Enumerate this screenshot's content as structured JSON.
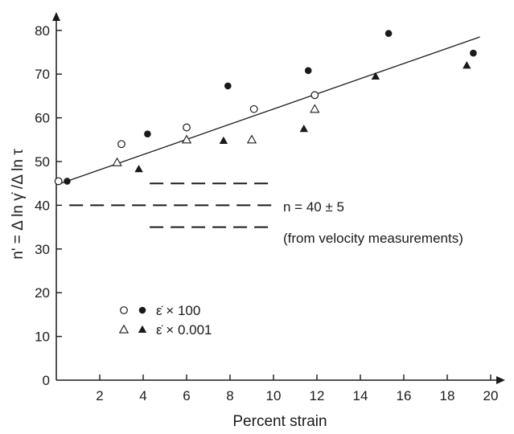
{
  "chart_data": {
    "type": "scatter",
    "title": "",
    "xlabel": "Percent strain",
    "ylabel": "n' = Δ ln γ̇ /Δ ln τ",
    "xlim": [
      0,
      20
    ],
    "ylim": [
      0,
      85
    ],
    "x_ticks": [
      2,
      4,
      6,
      8,
      10,
      12,
      14,
      16,
      18,
      20
    ],
    "y_ticks": [
      0,
      10,
      20,
      30,
      40,
      50,
      60,
      70,
      80
    ],
    "grid": false,
    "series": [
      {
        "marker": "open-circle",
        "points": [
          [
            0.1,
            45.5
          ],
          [
            3.0,
            54.0
          ],
          [
            6.0,
            57.8
          ],
          [
            9.1,
            62.0
          ],
          [
            11.9,
            65.2
          ]
        ]
      },
      {
        "marker": "filled-circle",
        "points": [
          [
            0.5,
            45.5
          ],
          [
            4.2,
            56.3
          ],
          [
            7.9,
            67.3
          ],
          [
            11.6,
            70.8
          ],
          [
            15.3,
            79.3
          ],
          [
            19.2,
            74.8
          ]
        ]
      },
      {
        "marker": "open-triangle",
        "points": [
          [
            2.8,
            49.8
          ],
          [
            6.0,
            55.0
          ],
          [
            9.0,
            55.0
          ],
          [
            11.9,
            62.0
          ]
        ]
      },
      {
        "marker": "filled-triangle",
        "points": [
          [
            3.8,
            48.3
          ],
          [
            7.7,
            54.8
          ],
          [
            11.4,
            57.5
          ],
          [
            14.7,
            69.5
          ],
          [
            18.9,
            72.0
          ]
        ]
      }
    ],
    "fit_line": {
      "x": [
        0.2,
        19.5
      ],
      "y": [
        45.0,
        78.5
      ]
    },
    "reference_lines": [
      {
        "y": 45,
        "x": [
          4.3,
          10
        ],
        "style": "dashed"
      },
      {
        "y": 40,
        "x": [
          0.6,
          10
        ],
        "style": "dashed"
      },
      {
        "y": 35,
        "x": [
          4.3,
          10
        ],
        "style": "dashed"
      }
    ],
    "annotation": {
      "line1": "n = 40 ± 5",
      "line2": "(from velocity measurements)"
    },
    "legend": {
      "placement": "lower-left",
      "entries": [
        {
          "symbols": [
            "open-circle",
            "filled-circle"
          ],
          "label": "ε̇ × 100"
        },
        {
          "symbols": [
            "open-triangle",
            "filled-triangle"
          ],
          "label": "ε̇ × 0.001"
        }
      ]
    },
    "colors": {
      "ink": "#1a1a1a",
      "background": "#ffffff"
    }
  }
}
